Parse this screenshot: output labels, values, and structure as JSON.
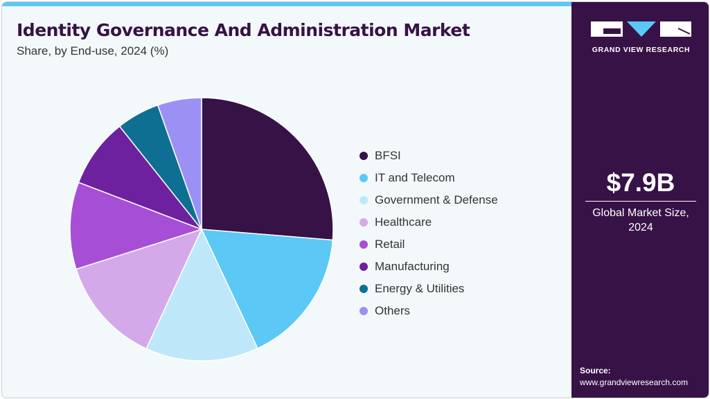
{
  "header": {
    "title": "Identity Governance And Administration Market",
    "subtitle": "Share, by End-use, 2024 (%)"
  },
  "brand": {
    "name": "GRAND VIEW RESEARCH"
  },
  "stats": {
    "market_size": "$7.9B",
    "market_size_label_line1": "Global Market Size,",
    "market_size_label_line2": "2024"
  },
  "source": {
    "label": "Source:",
    "url": "www.grandviewresearch.com"
  },
  "chart_data": {
    "type": "pie",
    "title": "Identity Governance And Administration Market",
    "subtitle": "Share, by End-use, 2024 (%)",
    "legend_position": "right",
    "categories": [
      "BFSI",
      "IT and Telecom",
      "Government & Defense",
      "Healthcare",
      "Retail",
      "Manufacturing",
      "Energy & Utilities",
      "Others"
    ],
    "values": [
      26.3,
      16.7,
      13.9,
      13.2,
      10.7,
      8.5,
      5.3,
      5.4
    ],
    "colors": [
      "#371246",
      "#5bc8f5",
      "#bee8f9",
      "#d4a9ea",
      "#a64fd6",
      "#6d219f",
      "#0e6f93",
      "#9b91f5"
    ]
  }
}
